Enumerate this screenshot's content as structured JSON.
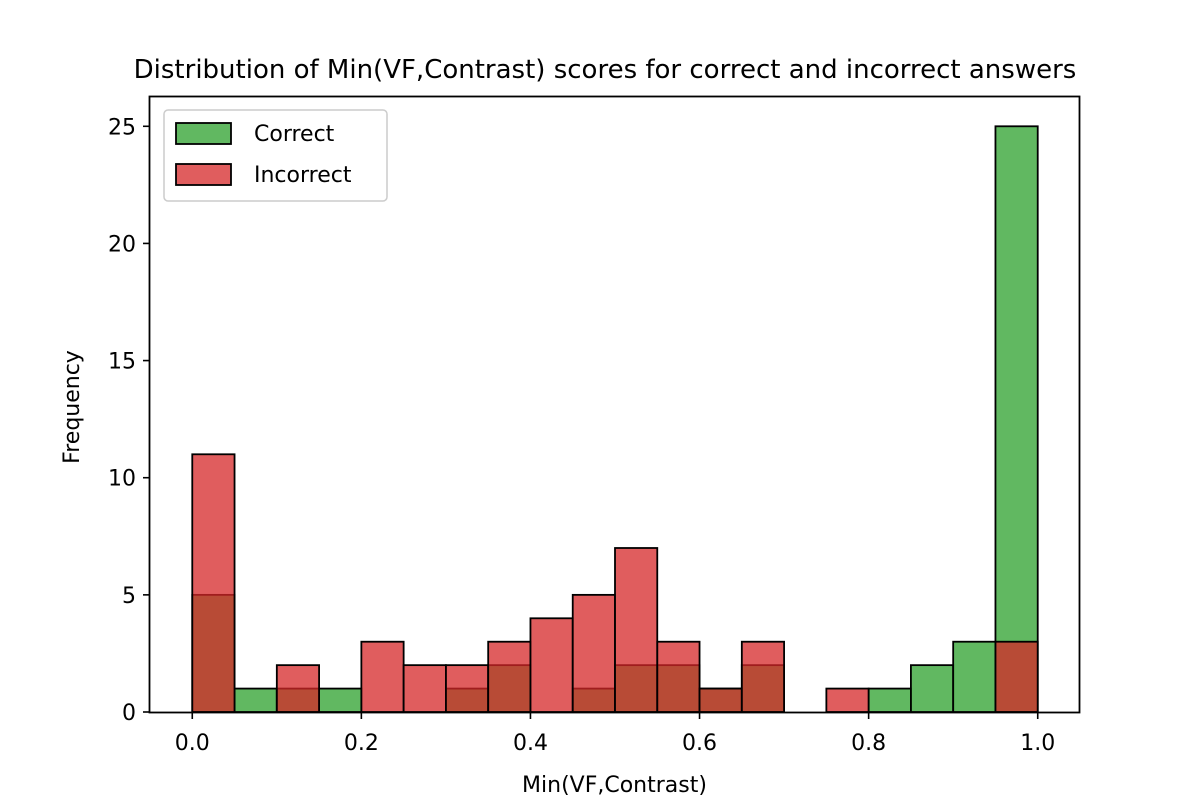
{
  "chart_data": {
    "type": "bar",
    "title": "Distribution of Min(VF,Contrast) scores for correct and incorrect answers",
    "xlabel": "Min(VF,Contrast)",
    "ylabel": "Frequency",
    "xlim": [
      -0.05,
      1.05
    ],
    "ylim": [
      0,
      26.25
    ],
    "xticks": [
      "0.0",
      "0.2",
      "0.4",
      "0.6",
      "0.8",
      "1.0"
    ],
    "yticks": [
      "0",
      "5",
      "10",
      "15",
      "20",
      "25"
    ],
    "bin_edges": [
      0.0,
      0.05,
      0.1,
      0.15,
      0.2,
      0.25,
      0.3,
      0.35,
      0.4,
      0.45,
      0.5,
      0.55,
      0.6,
      0.65,
      0.7,
      0.75,
      0.8,
      0.85,
      0.9,
      0.95,
      1.0
    ],
    "legend_position": "top-left",
    "grid": false,
    "series": [
      {
        "name": "Correct",
        "color": "#2ca02c",
        "values": [
          5,
          1,
          1,
          1,
          0,
          0,
          1,
          2,
          0,
          1,
          2,
          2,
          1,
          2,
          0,
          0,
          1,
          2,
          3,
          25
        ]
      },
      {
        "name": "Incorrect",
        "color": "#d62728",
        "values": [
          11,
          0,
          2,
          0,
          3,
          2,
          2,
          3,
          4,
          5,
          7,
          3,
          1,
          3,
          0,
          1,
          0,
          0,
          0,
          3
        ]
      }
    ]
  }
}
